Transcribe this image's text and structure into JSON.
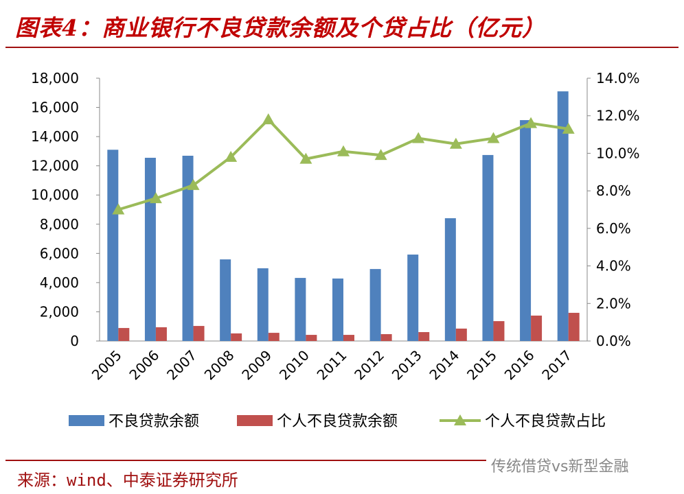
{
  "title": "图表4：商业银行不良贷款余额及个贷占比（亿元）",
  "source": "来源：wind、中泰证券研究所",
  "watermark": "传统借贷vs新型金融",
  "colors": {
    "blue": "#4F81BD",
    "red": "#C0504D",
    "green": "#9BBB59",
    "title": "#C00000"
  },
  "chart_data": {
    "type": "bar+line",
    "categories": [
      "2005",
      "2006",
      "2007",
      "2008",
      "2009",
      "2010",
      "2011",
      "2012",
      "2013",
      "2014",
      "2015",
      "2016",
      "2017"
    ],
    "series": [
      {
        "name": "不良贷款余额",
        "type": "bar",
        "axis": "left",
        "values": [
          13100,
          12550,
          12690,
          5590,
          4980,
          4320,
          4280,
          4930,
          5920,
          8410,
          12740,
          15130,
          17100
        ]
      },
      {
        "name": "个人不良贷款余额",
        "type": "bar",
        "axis": "left",
        "values": [
          890,
          940,
          1030,
          520,
          560,
          420,
          420,
          470,
          610,
          850,
          1360,
          1740,
          1930
        ]
      },
      {
        "name": "个人不良贷款占比",
        "type": "line",
        "axis": "right",
        "values": [
          7.0,
          7.6,
          8.3,
          9.8,
          11.8,
          9.7,
          10.1,
          9.9,
          10.8,
          10.5,
          10.8,
          11.6,
          11.3
        ]
      }
    ],
    "left_axis": {
      "ylim": [
        0,
        18000
      ],
      "ticks": [
        "0",
        "2,000",
        "4,000",
        "6,000",
        "8,000",
        "10,000",
        "12,000",
        "14,000",
        "16,000",
        "18,000"
      ]
    },
    "right_axis": {
      "ylim": [
        0,
        14
      ],
      "ticks": [
        "0.0%",
        "2.0%",
        "4.0%",
        "6.0%",
        "8.0%",
        "10.0%",
        "12.0%",
        "14.0%"
      ]
    },
    "legend": "bottom",
    "grid": false
  }
}
